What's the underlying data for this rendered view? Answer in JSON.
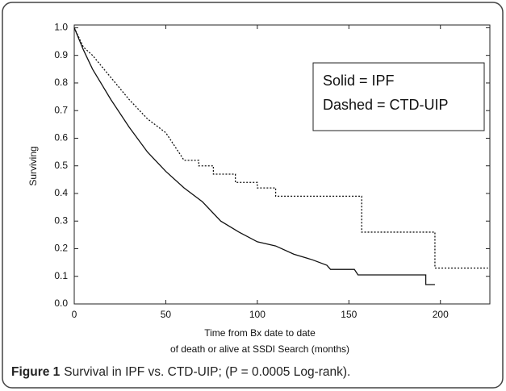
{
  "chart_data": {
    "type": "line",
    "annotations": [
      "Solid = IPF",
      "Dashed = CTD-UIP"
    ],
    "ylabel": "Surviving",
    "xlabel": [
      "Time from Bx date to date",
      "of death or alive at SSDI Search (months)"
    ],
    "caption_label": "Figure 1",
    "caption": "Survival in IPF vs. CTD-UIP; (P = 0.0005 Log-rank).",
    "xlim": [
      0,
      227
    ],
    "ylim": [
      0,
      1.01
    ],
    "xticks": [
      0,
      50,
      100,
      150,
      200
    ],
    "yticks": [
      {
        "value": 0,
        "label": "0.0"
      },
      0.1,
      0.2,
      0.3,
      0.4,
      0.5,
      0.6,
      0.7,
      0.8,
      0.9,
      {
        "value": 1,
        "label": "1.0"
      }
    ],
    "series": [
      {
        "color": "#111111",
        "dash": false,
        "x": [
          0,
          5,
          10,
          20,
          30,
          40,
          50,
          60,
          70,
          80,
          90,
          100,
          110,
          120,
          130,
          138,
          140,
          153,
          155,
          192,
          192,
          197
        ],
        "values": [
          1,
          0.92,
          0.85,
          0.74,
          0.64,
          0.55,
          0.48,
          0.42,
          0.37,
          0.3,
          0.26,
          0.225,
          0.21,
          0.18,
          0.16,
          0.14,
          0.125,
          0.125,
          0.105,
          0.105,
          0.07,
          0.07
        ]
      },
      {
        "color": "#111111",
        "dash": true,
        "x": [
          0,
          5,
          10,
          20,
          30,
          40,
          50,
          55,
          60,
          68,
          68,
          76,
          76,
          88,
          88,
          100,
          100,
          110,
          110,
          157,
          157,
          197,
          197,
          226
        ],
        "values": [
          1,
          0.93,
          0.9,
          0.82,
          0.74,
          0.67,
          0.62,
          0.57,
          0.52,
          0.52,
          0.5,
          0.5,
          0.47,
          0.47,
          0.44,
          0.44,
          0.42,
          0.42,
          0.39,
          0.39,
          0.26,
          0.26,
          0.13,
          0.13
        ]
      }
    ]
  }
}
